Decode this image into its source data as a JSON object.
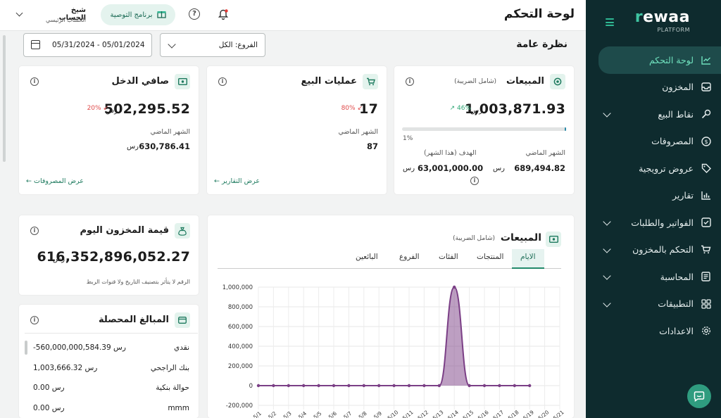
{
  "brand": {
    "logo_text": "rewaa",
    "logo_sub": "PLATFORM",
    "accent": "#2fb893",
    "sidebar_bg": "#0e2b2e"
  },
  "sidebar": {
    "items": [
      {
        "label": "لوحة التحكم",
        "icon": "chart-line-icon",
        "active": true
      },
      {
        "label": "المخزون",
        "icon": "inbox-icon"
      },
      {
        "label": "نقاط البيع",
        "icon": "pos-icon",
        "expandable": true
      },
      {
        "label": "المصروفات",
        "icon": "dollar-icon"
      },
      {
        "label": "عروض ترويجية",
        "icon": "tag-icon"
      },
      {
        "label": "تقارير",
        "icon": "bar-chart-icon"
      },
      {
        "label": "الفواتير والطلبات",
        "icon": "invoice-check-icon",
        "expandable": true
      },
      {
        "label": "التحكم بالمخزون",
        "icon": "cart-icon",
        "expandable": true
      },
      {
        "label": "المحاسبة",
        "icon": "ledger-icon",
        "expandable": true
      },
      {
        "label": "التطبيقات",
        "icon": "apps-grid-icon",
        "expandable": true
      },
      {
        "label": "الاعدادات",
        "icon": "gear-icon"
      }
    ]
  },
  "header": {
    "title": "لوحة التحكم",
    "referral_label": "برنامج التوصية",
    "account_name": "شيخ الحساب",
    "account_sub": "الحساب الرئيسي"
  },
  "filters": {
    "section_title": "نظرة عامة",
    "branch": "الفروع: الكل",
    "date_range": "05/31/2024 - 05/01/2024"
  },
  "sales_card": {
    "title": "المبيعات",
    "subtitle": "(شامل الضريبة)",
    "value": "1,003,871.93",
    "currency": "رس",
    "change": "46%",
    "progress_label": "1%",
    "progress": 1,
    "last_month_label": "الشهر الماضي",
    "last_month_value": "689,494.82",
    "target_label": "الهدف (هذا الشهر)",
    "target_value": "63,001,000.00",
    "currency_short": "رس"
  },
  "transactions_card": {
    "title": "عمليات البيع",
    "value": "17",
    "change": "80%",
    "last_month_label": "الشهر الماضي",
    "last_month_value": "87",
    "link": "عرض التقارير"
  },
  "net_income_card": {
    "title": "صافي الدخل",
    "value": "502,295.52",
    "currency": "رس",
    "change": "20%",
    "last_month_label": "الشهر الماضي",
    "last_month_value": "630,786.41",
    "currency_short": "رس",
    "link": "عرض المصروفات"
  },
  "inventory_card": {
    "title": "قيمة المخزون اليوم",
    "value": "616,352,896,052.27",
    "currency": "رس",
    "note": "الرقم لا يتأثر بتصنيف التاريخ ولا قنوات الربط"
  },
  "collected_card": {
    "title": "المبالغ المحصلة",
    "rows": [
      {
        "label": "نقدي",
        "value": "-560,000,000,584.39 رس"
      },
      {
        "label": "بنك الراجحي",
        "value": "1,003,666.32 رس"
      },
      {
        "label": "حوالة بنكية",
        "value": "0.00 رس"
      },
      {
        "label": "mmm",
        "value": "0.00 رس"
      }
    ]
  },
  "sales_chart_card": {
    "title": "المبيعات",
    "subtitle": "(شامل الضريبة)",
    "tabs": [
      "الايام",
      "المنتجات",
      "الفئات",
      "الفروع",
      "البائعين"
    ]
  },
  "chart_data": {
    "type": "area",
    "ylim": [
      -200000,
      1000000
    ],
    "y_ticks": [
      "1,000,000",
      "800,000",
      "600,000",
      "400,000",
      "200,000",
      "0",
      "-200,000"
    ],
    "x": [
      "5/1",
      "5/2",
      "5/3",
      "5/4",
      "5/5",
      "5/6",
      "5/7",
      "5/8",
      "5/9",
      "5/10",
      "5/11",
      "5/12",
      "5/13",
      "5/14",
      "5/15",
      "5/16",
      "5/17",
      "5/18",
      "5/19",
      "5/20",
      "5/21"
    ],
    "values": [
      0,
      0,
      0,
      0,
      0,
      0,
      0,
      0,
      0,
      0,
      0,
      0,
      0,
      1000000,
      0,
      0,
      0,
      0,
      0,
      null,
      null
    ],
    "color": "#7b3f86"
  }
}
